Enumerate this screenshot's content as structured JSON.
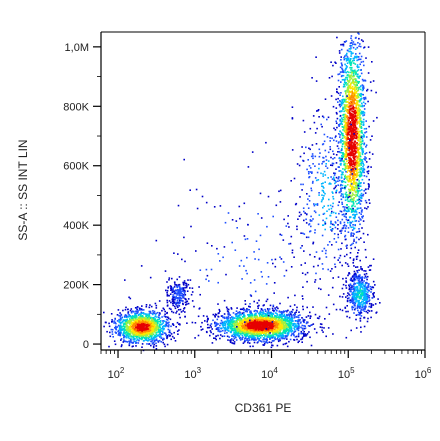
{
  "chart_data": {
    "type": "scatter",
    "subtype": "flow-cytometry density dot plot",
    "xlabel": "CD361 PE",
    "ylabel": "SS-A :: SS INT LIN",
    "x_scale": "log",
    "xlim": [
      60,
      1000000
    ],
    "ylim": [
      -20000,
      1050000
    ],
    "x_ticks": [
      {
        "value": 100,
        "base": "10",
        "exp": "2"
      },
      {
        "value": 1000,
        "base": "10",
        "exp": "3"
      },
      {
        "value": 10000,
        "base": "10",
        "exp": "4"
      },
      {
        "value": 100000,
        "base": "10",
        "exp": "5"
      },
      {
        "value": 1000000,
        "base": "10",
        "exp": "6"
      }
    ],
    "y_ticks": [
      {
        "value": 0,
        "label": "0"
      },
      {
        "value": 200000,
        "label": "200K"
      },
      {
        "value": 400000,
        "label": "400K"
      },
      {
        "value": 600000,
        "label": "600K"
      },
      {
        "value": 800000,
        "label": "800K"
      },
      {
        "value": 1000000,
        "label": "1,0M"
      }
    ],
    "grid": false,
    "legend": "none",
    "density_colors": [
      "#0000c8",
      "#1e50ff",
      "#00b4ff",
      "#00e6b4",
      "#a0f040",
      "#ffe600",
      "#ff8c00",
      "#e60000"
    ],
    "populations": [
      {
        "x_center": 200,
        "x_spread_decades": 0.18,
        "y_center": 60000,
        "y_spread": 28000,
        "relative_count": 0.9
      },
      {
        "x_center": 600,
        "x_spread_decades": 0.07,
        "y_center": 170000,
        "y_spread": 28000,
        "relative_count": 0.15
      },
      {
        "x_center": 7000,
        "x_spread_decades": 0.28,
        "y_center": 65000,
        "y_spread": 25000,
        "relative_count": 1.6
      },
      {
        "x_center": 110000,
        "x_spread_decades": 0.09,
        "y_center": 700000,
        "y_spread": 170000,
        "relative_count": 1.4
      },
      {
        "x_center": 140000,
        "x_spread_decades": 0.09,
        "y_center": 170000,
        "y_spread": 40000,
        "relative_count": 0.35
      },
      {
        "x_center": 50000,
        "x_spread_decades": 0.2,
        "y_center": 500000,
        "y_spread": 160000,
        "relative_count": 0.25
      },
      {
        "x_center": 5000,
        "x_spread_decades": 0.6,
        "y_center": 300000,
        "y_spread": 150000,
        "relative_count": 0.12
      }
    ]
  }
}
